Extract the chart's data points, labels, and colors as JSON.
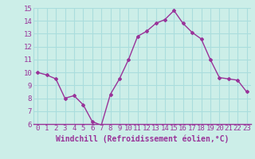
{
  "x": [
    0,
    1,
    2,
    3,
    4,
    5,
    6,
    7,
    8,
    9,
    10,
    11,
    12,
    13,
    14,
    15,
    16,
    17,
    18,
    19,
    20,
    21,
    22,
    23
  ],
  "y": [
    10.0,
    9.8,
    9.5,
    8.0,
    8.2,
    7.5,
    6.2,
    5.9,
    8.3,
    9.5,
    11.0,
    12.8,
    13.2,
    13.8,
    14.1,
    14.8,
    13.8,
    13.1,
    12.6,
    11.0,
    9.6,
    9.5,
    9.4,
    8.5
  ],
  "line_color": "#993399",
  "marker": "D",
  "marker_size": 2.0,
  "line_width": 1.0,
  "bg_color": "#cceee8",
  "grid_color": "#aadddd",
  "xlabel": "Windchill (Refroidissement éolien,°C)",
  "xlabel_color": "#993399",
  "tick_color": "#993399",
  "ylim": [
    6,
    15
  ],
  "xlim": [
    -0.5,
    23.5
  ],
  "yticks": [
    6,
    7,
    8,
    9,
    10,
    11,
    12,
    13,
    14,
    15
  ],
  "xticks": [
    0,
    1,
    2,
    3,
    4,
    5,
    6,
    7,
    8,
    9,
    10,
    11,
    12,
    13,
    14,
    15,
    16,
    17,
    18,
    19,
    20,
    21,
    22,
    23
  ],
  "font_size": 6.5,
  "xlabel_font_size": 7.0
}
